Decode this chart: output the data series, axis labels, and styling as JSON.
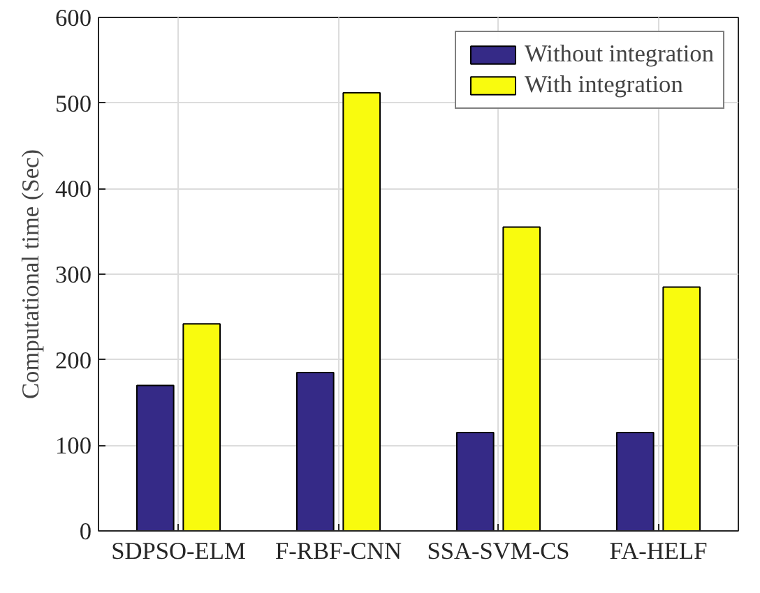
{
  "chart_data": {
    "type": "bar",
    "ylabel": "Computational time (Sec)",
    "categories": [
      "SDPSO-ELM",
      "F-RBF-CNN",
      "SSA-SVM-CS",
      "FA-HELF"
    ],
    "series": [
      {
        "name": "Without integration",
        "color": "#352a87",
        "values": [
          170,
          185,
          115,
          115
        ]
      },
      {
        "name": "With integration",
        "color": "#f9fb0e",
        "values": [
          242,
          512,
          355,
          285
        ]
      }
    ],
    "ylim": [
      0,
      600
    ],
    "yticks": [
      0,
      100,
      200,
      300,
      400,
      500,
      600
    ],
    "grid": true,
    "legend": "top right"
  }
}
